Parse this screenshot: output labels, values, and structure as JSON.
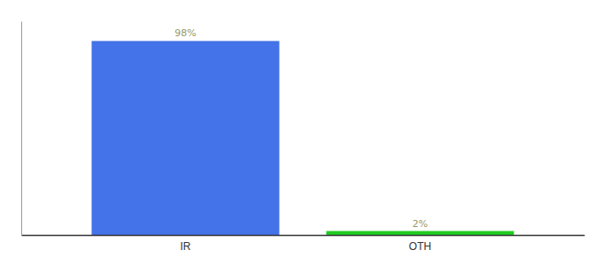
{
  "chart_data": {
    "type": "bar",
    "categories": [
      "IR",
      "OTH"
    ],
    "values": [
      98,
      2
    ],
    "value_labels": [
      "98%",
      "2%"
    ],
    "colors": [
      "#4472e8",
      "#22cc22"
    ],
    "ylim": [
      0,
      108
    ],
    "data_labels": true,
    "tick_labels": "x",
    "grid": false
  }
}
